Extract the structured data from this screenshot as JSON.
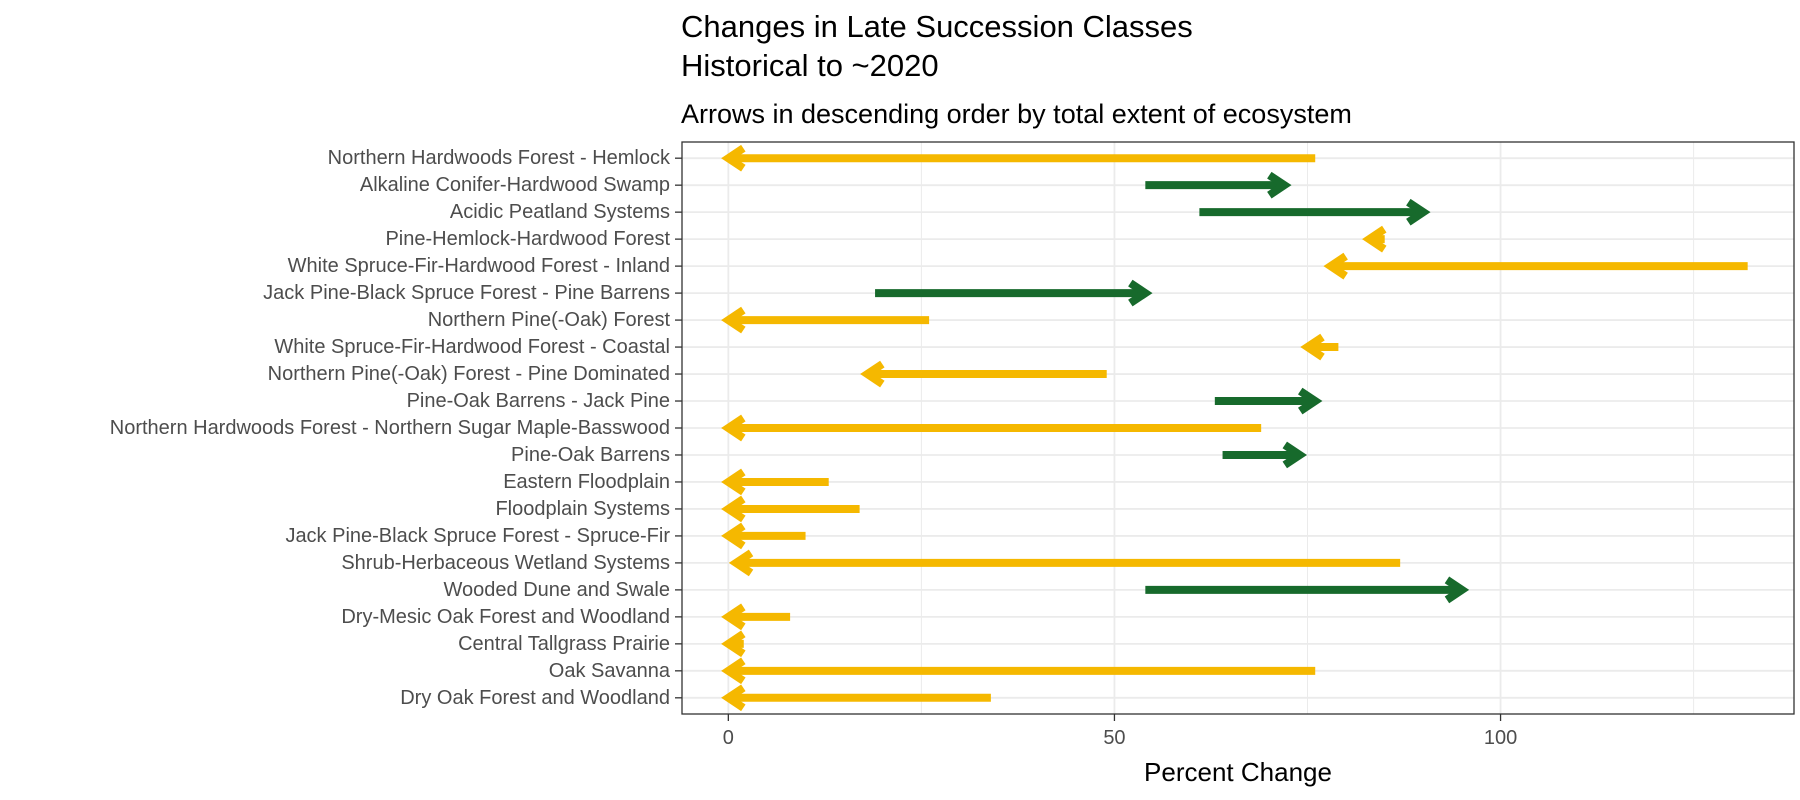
{
  "chart_data": {
    "type": "arrow",
    "title": [
      "Changes in Late Succession Classes",
      "Historical to ~2020"
    ],
    "subtitle": "Arrows in descending order by total extent of ecosystem",
    "xlabel": "Percent Change",
    "ylabel": "",
    "xlim": [
      -6,
      138
    ],
    "x_ticks": [
      0,
      50,
      100
    ],
    "grid": true,
    "colors": {
      "increase": "#176a2c",
      "decrease": "#f5b800"
    },
    "series": [
      {
        "label": "Northern Hardwoods Forest - Hemlock",
        "start": 76,
        "end": 0
      },
      {
        "label": "Alkaline Conifer-Hardwood Swamp",
        "start": 54,
        "end": 72
      },
      {
        "label": "Acidic Peatland Systems",
        "start": 61,
        "end": 90
      },
      {
        "label": "Pine-Hemlock-Hardwood Forest",
        "start": 85,
        "end": 83
      },
      {
        "label": "White Spruce-Fir-Hardwood Forest - Inland",
        "start": 132,
        "end": 78
      },
      {
        "label": "Jack Pine-Black Spruce Forest - Pine Barrens",
        "start": 19,
        "end": 54
      },
      {
        "label": "Northern Pine(-Oak) Forest",
        "start": 26,
        "end": 0
      },
      {
        "label": "White Spruce-Fir-Hardwood Forest - Coastal",
        "start": 79,
        "end": 75
      },
      {
        "label": "Northern Pine(-Oak) Forest - Pine Dominated",
        "start": 49,
        "end": 18
      },
      {
        "label": "Pine-Oak Barrens - Jack Pine",
        "start": 63,
        "end": 76
      },
      {
        "label": "Northern Hardwoods Forest - Northern Sugar Maple-Basswood",
        "start": 69,
        "end": 0
      },
      {
        "label": "Pine-Oak Barrens",
        "start": 64,
        "end": 74
      },
      {
        "label": "Eastern Floodplain",
        "start": 13,
        "end": 0
      },
      {
        "label": "Floodplain Systems",
        "start": 17,
        "end": 0
      },
      {
        "label": "Jack Pine-Black Spruce Forest - Spruce-Fir",
        "start": 10,
        "end": 0
      },
      {
        "label": "Shrub-Herbaceous Wetland Systems",
        "start": 87,
        "end": 1
      },
      {
        "label": "Wooded Dune and Swale",
        "start": 54,
        "end": 95
      },
      {
        "label": "Dry-Mesic Oak Forest and Woodland",
        "start": 8,
        "end": 0
      },
      {
        "label": "Central Tallgrass Prairie",
        "start": 2,
        "end": 0
      },
      {
        "label": "Oak Savanna",
        "start": 76,
        "end": 0
      },
      {
        "label": "Dry Oak Forest and Woodland",
        "start": 34,
        "end": 0
      }
    ]
  }
}
